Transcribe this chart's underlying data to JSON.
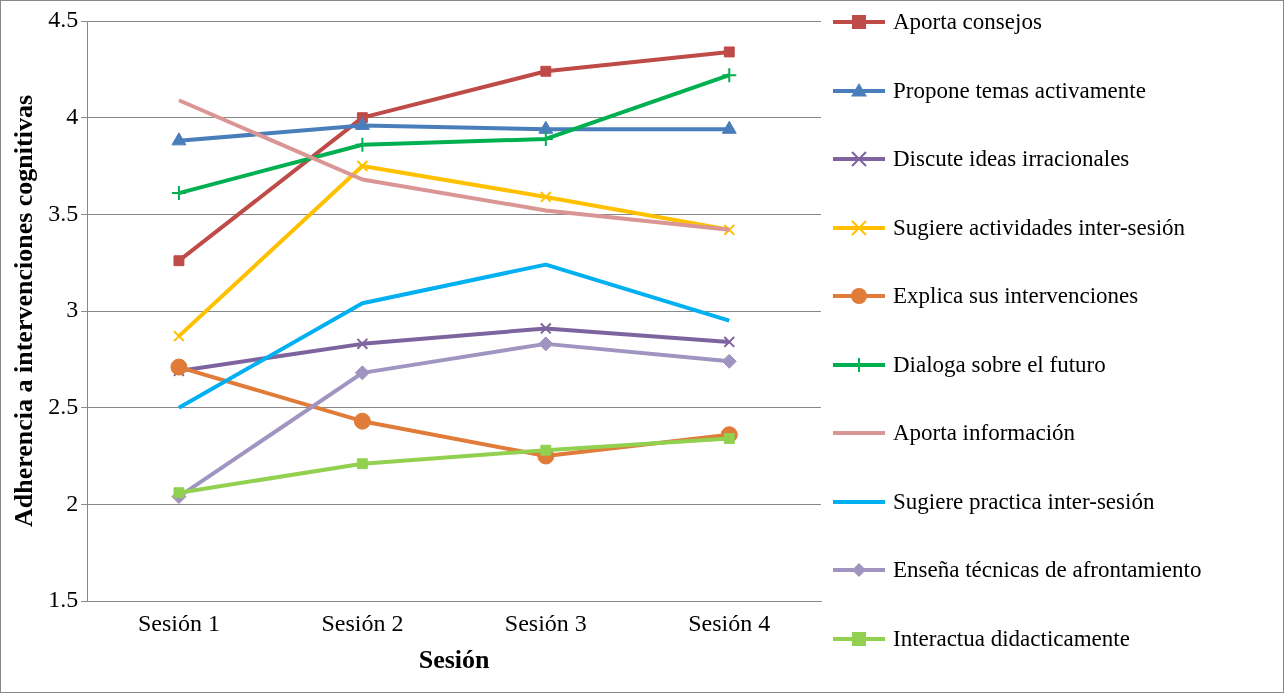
{
  "chart_data": {
    "type": "line",
    "xlabel": "Sesión",
    "ylabel": "Adherencia a intervenciones cognitivas",
    "categories": [
      "Sesión 1",
      "Sesión 2",
      "Sesión 3",
      "Sesión 4"
    ],
    "ylim": [
      1.5,
      4.5
    ],
    "yticks": [
      1.5,
      2,
      2.5,
      3,
      3.5,
      4,
      4.5
    ],
    "grid": "y",
    "legend": "right",
    "series": [
      {
        "name": "Aporta consejos",
        "color": "#be4b48",
        "marker": "square",
        "values": [
          3.26,
          4.0,
          4.24,
          4.34
        ]
      },
      {
        "name": "Propone temas activamente",
        "color": "#4a7ebb",
        "marker": "triangle",
        "values": [
          3.88,
          3.96,
          3.94,
          3.94
        ]
      },
      {
        "name": "Discute ideas irracionales",
        "color": "#7e649e",
        "marker": "cross",
        "values": [
          2.69,
          2.83,
          2.91,
          2.84
        ]
      },
      {
        "name": "Sugiere actividades inter-sesión",
        "color": "#ffc000",
        "marker": "cross",
        "values": [
          2.87,
          3.75,
          3.59,
          3.42
        ]
      },
      {
        "name": "Explica sus intervenciones",
        "color": "#e07b39",
        "marker": "circle",
        "values": [
          2.71,
          2.43,
          2.25,
          2.36
        ]
      },
      {
        "name": "Dialoga sobre el futuro",
        "color": "#00b050",
        "marker": "plus",
        "values": [
          3.61,
          3.86,
          3.89,
          4.22
        ]
      },
      {
        "name": "Aporta información",
        "color": "#d99694",
        "marker": "none",
        "values": [
          4.09,
          3.68,
          3.52,
          3.42
        ]
      },
      {
        "name": "Sugiere practica inter-sesión",
        "color": "#00b0f0",
        "marker": "none",
        "values": [
          2.5,
          3.04,
          3.24,
          2.95
        ]
      },
      {
        "name": "Enseña técnicas de afrontamiento",
        "color": "#a094c0",
        "marker": "diamond",
        "values": [
          2.04,
          2.68,
          2.83,
          2.74
        ]
      },
      {
        "name": "Interactua didacticamente",
        "color": "#92d050",
        "marker": "square",
        "values": [
          2.06,
          2.21,
          2.28,
          2.34
        ]
      }
    ]
  }
}
